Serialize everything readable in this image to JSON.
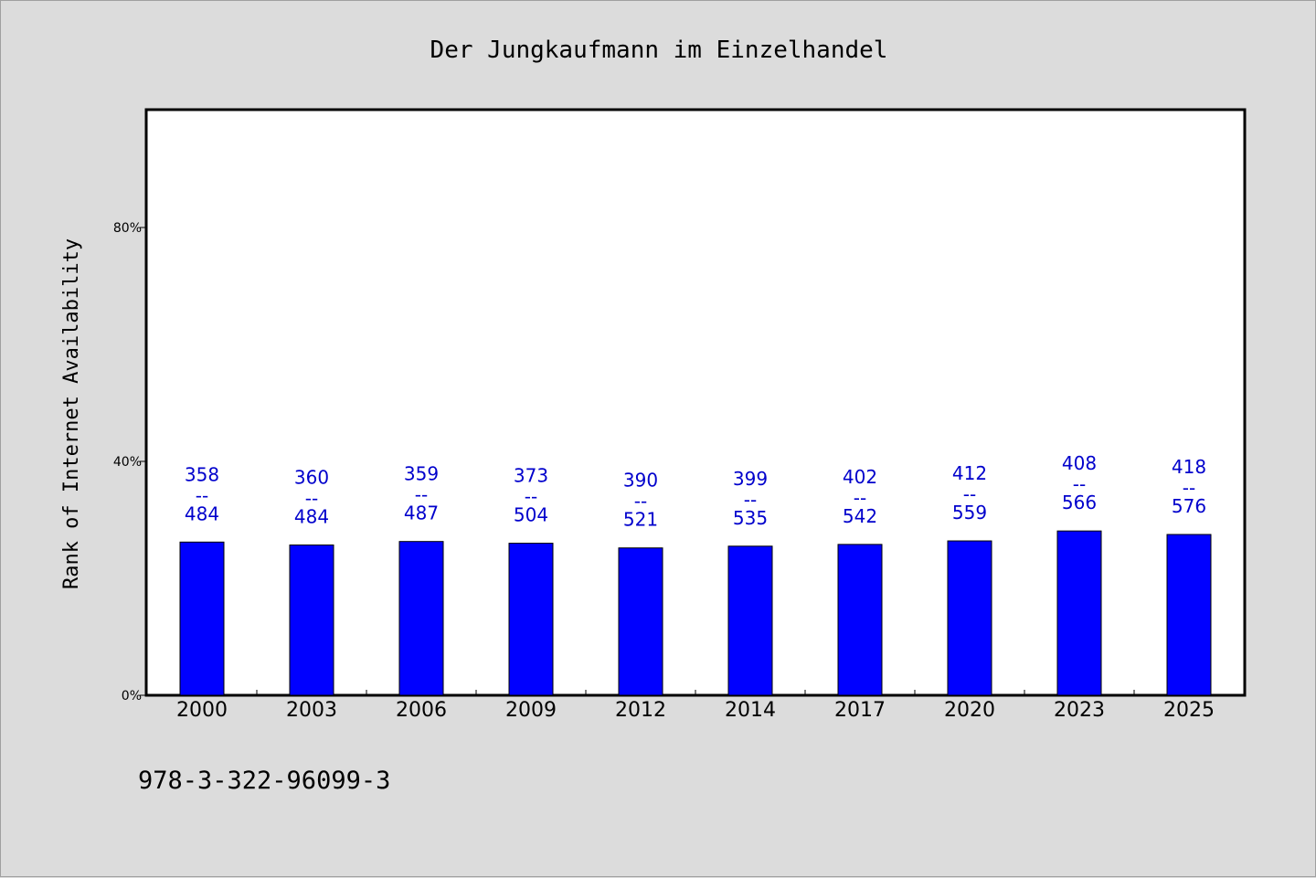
{
  "chart_data": {
    "type": "bar",
    "title": "Der Jungkaufmann im Einzelhandel",
    "xlabel": "",
    "ylabel": "Rank of Internet Availability",
    "ylim": [
      0,
      100
    ],
    "yticks": [
      0,
      40,
      80
    ],
    "ytick_labels": [
      "0%",
      "40%",
      "80%"
    ],
    "categories": [
      "2000",
      "2003",
      "2006",
      "2009",
      "2012",
      "2014",
      "2017",
      "2020",
      "2023",
      "2025"
    ],
    "values": [
      26.2,
      25.7,
      26.3,
      26.0,
      25.2,
      25.5,
      25.8,
      26.4,
      28.1,
      27.5
    ],
    "bar_labels": [
      {
        "top": "358",
        "sep": "--",
        "bottom": "484"
      },
      {
        "top": "360",
        "sep": "--",
        "bottom": "484"
      },
      {
        "top": "359",
        "sep": "--",
        "bottom": "487"
      },
      {
        "top": "373",
        "sep": "--",
        "bottom": "504"
      },
      {
        "top": "390",
        "sep": "--",
        "bottom": "521"
      },
      {
        "top": "399",
        "sep": "--",
        "bottom": "535"
      },
      {
        "top": "402",
        "sep": "--",
        "bottom": "542"
      },
      {
        "top": "412",
        "sep": "--",
        "bottom": "559"
      },
      {
        "top": "408",
        "sep": "--",
        "bottom": "566"
      },
      {
        "top": "418",
        "sep": "--",
        "bottom": "576"
      }
    ],
    "bar_color": "#0000ff",
    "label_color": "#0000cc",
    "grid": false,
    "legend": "none"
  },
  "footer": {
    "isbn": "978-3-322-96099-3"
  }
}
